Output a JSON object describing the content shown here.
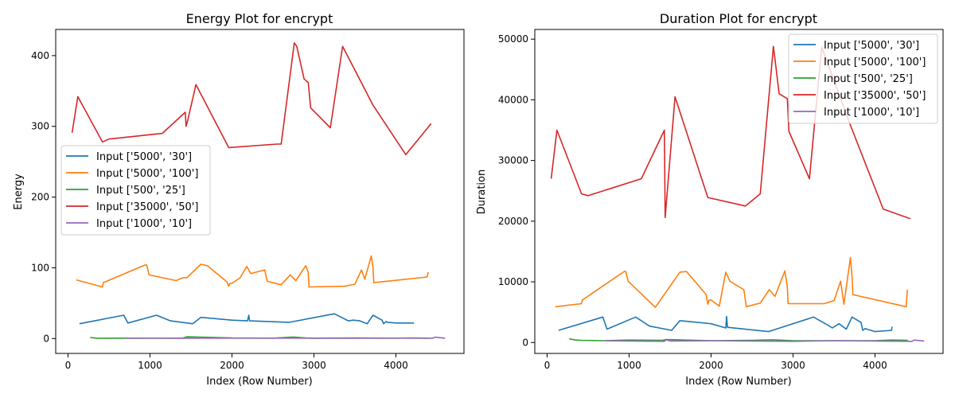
{
  "figure": {
    "background": "#ffffff"
  },
  "chart_data": [
    {
      "type": "line",
      "title": "Energy Plot for encrypt",
      "xlabel": "Index (Row Number)",
      "ylabel": "Energy",
      "xlim": [
        -150,
        4830
      ],
      "ylim": [
        -21,
        437
      ],
      "xticks": [
        0,
        1000,
        2000,
        3000,
        4000
      ],
      "xtick_labels": [
        "0",
        "1000",
        "2000",
        "3000",
        "4000"
      ],
      "yticks": [
        0,
        100,
        200,
        300,
        400
      ],
      "ytick_labels": [
        "0",
        "100",
        "200",
        "300",
        "400"
      ],
      "grid": false,
      "legend_position": "center-left",
      "series": [
        {
          "name": "Input ['5000', '30']",
          "color": "#1f77b4",
          "x": [
            140,
            680,
            730,
            1080,
            1250,
            1520,
            1620,
            2000,
            2190,
            2205,
            2215,
            2700,
            3250,
            3420,
            3480,
            3560,
            3650,
            3720,
            3830,
            3850,
            3880,
            3900,
            4000,
            4220
          ],
          "y": [
            21,
            33,
            22,
            33,
            25,
            21,
            30,
            26,
            25,
            33,
            25,
            23,
            35,
            25,
            26,
            25,
            21,
            33,
            26,
            21,
            24,
            23,
            22,
            22
          ]
        },
        {
          "name": "Input ['5000', '100']",
          "color": "#ff7f0e",
          "x": [
            100,
            420,
            430,
            940,
            960,
            990,
            1320,
            1400,
            1450,
            1620,
            1700,
            1940,
            1960,
            1975,
            2000,
            2100,
            2180,
            2230,
            2400,
            2430,
            2600,
            2710,
            2780,
            2900,
            2930,
            2940,
            3380,
            3500,
            3580,
            3620,
            3700,
            3720,
            3730,
            4380,
            4395
          ],
          "y": [
            83,
            73,
            79,
            104,
            104,
            90,
            82,
            86,
            86,
            105,
            103,
            80,
            74,
            78,
            78,
            86,
            102,
            92,
            97,
            81,
            76,
            90,
            82,
            103,
            94,
            73,
            74,
            77,
            97,
            84,
            117,
            100,
            79,
            87,
            94
          ]
        },
        {
          "name": "Input ['500', '25']",
          "color": "#2ca02c",
          "x": [
            270,
            350,
            420,
            700,
            1000,
            1400,
            1450,
            2000,
            2500,
            2750,
            2900,
            3000,
            3500,
            4000,
            4200,
            4400
          ],
          "y": [
            1.5,
            0.5,
            0.5,
            0.6,
            0.6,
            0.6,
            2.5,
            0.8,
            0.6,
            2.2,
            0.8,
            0.6,
            0.9,
            0.6,
            0.8,
            0.6
          ]
        },
        {
          "name": "Input ['35000', '50']",
          "color": "#d62728",
          "x": [
            50,
            120,
            420,
            500,
            1150,
            1430,
            1440,
            1460,
            1560,
            1960,
            2550,
            2600,
            2760,
            2790,
            2880,
            2930,
            2960,
            3200,
            3350,
            3720,
            4120,
            4430
          ],
          "y": [
            291,
            342,
            278,
            282,
            290,
            320,
            300,
            308,
            359,
            270,
            275,
            275,
            418,
            413,
            367,
            362,
            326,
            298,
            413,
            330,
            260,
            304
          ]
        },
        {
          "name": "Input ['1000', '10']",
          "color": "#9467bd",
          "x": [
            700,
            1000,
            1500,
            2000,
            2500,
            3000,
            3500,
            4000,
            4450,
            4480,
            4600
          ],
          "y": [
            0.5,
            0.6,
            0.5,
            0.6,
            0.6,
            0.5,
            0.5,
            0.6,
            0.5,
            2.0,
            0.5
          ]
        }
      ]
    },
    {
      "type": "line",
      "title": "Duration Plot for encrypt",
      "xlabel": "Index (Row Number)",
      "ylabel": "Duration",
      "xlim": [
        -150,
        4830
      ],
      "ylim": [
        -1800,
        51600
      ],
      "xticks": [
        0,
        1000,
        2000,
        3000,
        4000
      ],
      "xtick_labels": [
        "0",
        "1000",
        "2000",
        "3000",
        "4000"
      ],
      "yticks": [
        0,
        10000,
        20000,
        30000,
        40000,
        50000
      ],
      "ytick_labels": [
        "0",
        "10000",
        "20000",
        "30000",
        "40000",
        "50000"
      ],
      "grid": false,
      "legend_position": "top-right",
      "series": [
        {
          "name": "Input ['5000', '30']",
          "color": "#1f77b4",
          "x": [
            140,
            680,
            730,
            1080,
            1250,
            1520,
            1620,
            2000,
            2180,
            2190,
            2200,
            2700,
            3250,
            3420,
            3480,
            3560,
            3650,
            3720,
            3830,
            3850,
            3880,
            3900,
            4000,
            4200,
            4210
          ],
          "y": [
            2000,
            4200,
            2200,
            4200,
            2700,
            2000,
            3600,
            3100,
            2400,
            4300,
            2500,
            1800,
            4200,
            2900,
            2400,
            3100,
            2200,
            4200,
            3300,
            2000,
            2300,
            2200,
            1800,
            2000,
            2600
          ]
        },
        {
          "name": "Input ['5000', '100']",
          "color": "#ff7f0e",
          "x": [
            100,
            420,
            430,
            940,
            960,
            990,
            1320,
            1620,
            1700,
            1940,
            1960,
            1975,
            2000,
            2100,
            2180,
            2230,
            2400,
            2430,
            2600,
            2710,
            2780,
            2900,
            2930,
            2940,
            3380,
            3500,
            3580,
            3620,
            3700,
            3720,
            3730,
            4380,
            4395
          ],
          "y": [
            5900,
            6400,
            7000,
            11700,
            11700,
            10100,
            5800,
            11600,
            11700,
            7900,
            6300,
            7000,
            7000,
            6000,
            11600,
            10100,
            8700,
            5900,
            6500,
            8700,
            7600,
            11800,
            9200,
            6400,
            6400,
            6900,
            10100,
            6300,
            14000,
            10800,
            7900,
            5900,
            8700
          ]
        },
        {
          "name": "Input ['500', '25']",
          "color": "#2ca02c",
          "x": [
            270,
            350,
            420,
            700,
            1000,
            1400,
            1450,
            2000,
            2500,
            2750,
            2900,
            3000,
            3500,
            4000,
            4200,
            4400
          ],
          "y": [
            600,
            400,
            350,
            300,
            400,
            350,
            500,
            300,
            350,
            450,
            350,
            300,
            300,
            300,
            400,
            350
          ]
        },
        {
          "name": "Input ['35000', '50']",
          "color": "#d62728",
          "x": [
            50,
            120,
            420,
            500,
            1150,
            1430,
            1440,
            1560,
            1960,
            2420,
            2600,
            2760,
            2790,
            2830,
            2930,
            2950,
            3200,
            3350,
            3700,
            4100,
            4430
          ],
          "y": [
            27000,
            35000,
            24500,
            24200,
            27000,
            35000,
            20600,
            40500,
            23900,
            22500,
            24500,
            48800,
            45500,
            41000,
            40200,
            34800,
            27000,
            48700,
            35800,
            22000,
            20400
          ]
        },
        {
          "name": "Input ['1000', '10']",
          "color": "#9467bd",
          "x": [
            700,
            1000,
            1430,
            1450,
            1500,
            2000,
            2500,
            3000,
            3500,
            4000,
            4450,
            4480,
            4600
          ],
          "y": [
            300,
            250,
            200,
            450,
            250,
            300,
            250,
            200,
            300,
            250,
            200,
            400,
            250
          ]
        }
      ]
    }
  ]
}
